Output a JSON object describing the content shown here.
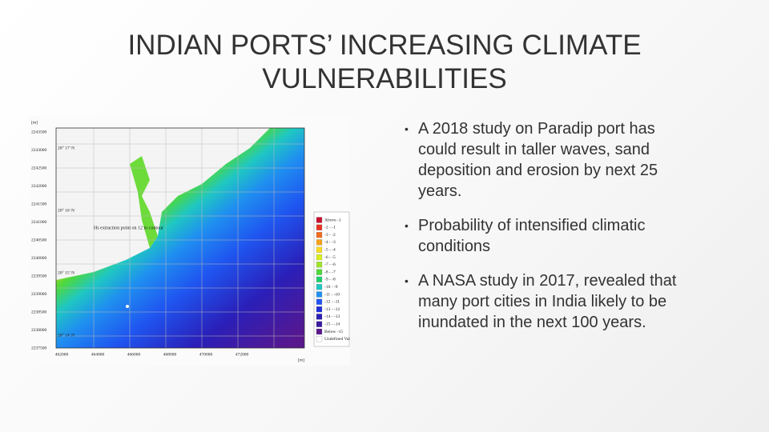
{
  "title": "INDIAN PORTS’ INCREASING CLIMATE VULNERABILITIES",
  "bullets": [
    "A 2018 study on Paradip port has could result in taller waves, sand deposition and erosion by next 25 years.",
    "Probability of intensified climatic conditions",
    "A NASA study in 2017, revealed that many port cities in India likely to be inundated in the next 100 years."
  ],
  "figure": {
    "unit": "[m]",
    "annotation": "Hs extraction point on 12 m contour",
    "y_labels": [
      "2243500",
      "2243000",
      "2242500",
      "2242000",
      "2241500",
      "2241000",
      "2240500",
      "2240000",
      "2239500",
      "2239000",
      "2238500",
      "2238000",
      "2237500"
    ],
    "lat_labels": [
      "20° 17' N",
      "20° 16' N",
      "20° 15' N",
      "20° 14' N"
    ],
    "x_labels": [
      "462000",
      "464000",
      "466000",
      "468000",
      "470000",
      "472000"
    ],
    "legend": [
      {
        "label": "Above -1",
        "color": "#c8102e"
      },
      {
        "label": "-2 - -1",
        "color": "#e8321e"
      },
      {
        "label": "-3 - -2",
        "color": "#f26a1b"
      },
      {
        "label": "-4 - -3",
        "color": "#f7a21b"
      },
      {
        "label": "-5 - -4",
        "color": "#fadb1e"
      },
      {
        "label": "-6 - -5",
        "color": "#d9ef1f"
      },
      {
        "label": "-7 - -6",
        "color": "#9ee52a"
      },
      {
        "label": "-8 - -7",
        "color": "#4fd93a"
      },
      {
        "label": "-9 - -8",
        "color": "#1fcf6e"
      },
      {
        "label": "-10 - -9",
        "color": "#1fc7c2"
      },
      {
        "label": "-11 - -10",
        "color": "#1f8ff0"
      },
      {
        "label": "-12 - -11",
        "color": "#1f55f0"
      },
      {
        "label": "-13 - -12",
        "color": "#1f2fd8"
      },
      {
        "label": "-14 - -13",
        "color": "#2a1fb8"
      },
      {
        "label": "-15 - -14",
        "color": "#3a1aa0"
      },
      {
        "label": "Below -15",
        "color": "#5a178c"
      },
      {
        "label": "Undefined Value",
        "color": "#ffffff"
      }
    ]
  }
}
